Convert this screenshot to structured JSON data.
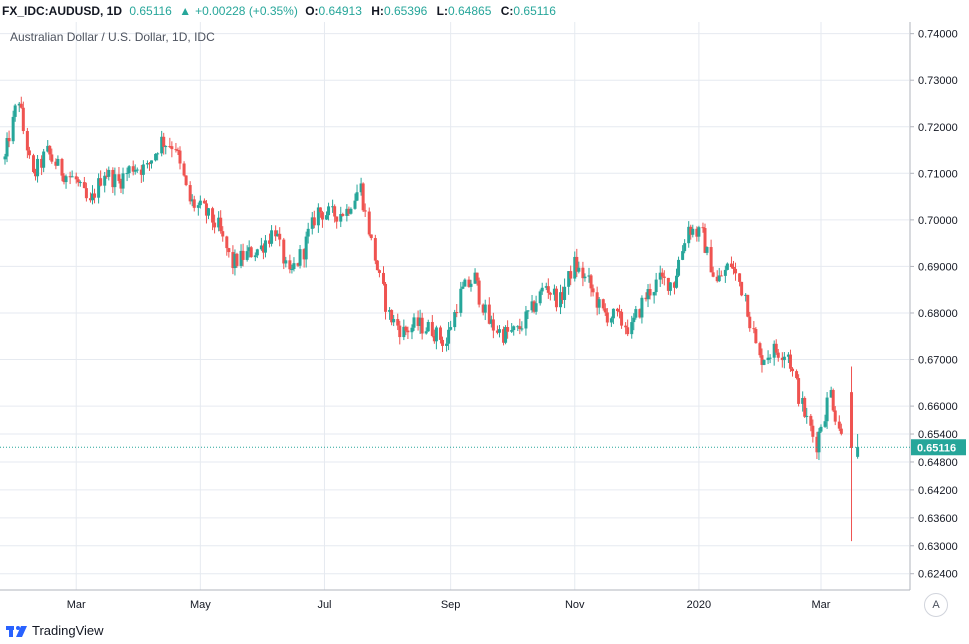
{
  "header": {
    "symbol": "FX_IDC:AUDUSD, 1D",
    "last": "0.65116",
    "change": "+0.00228 (+0.35%)",
    "o_label": "O:",
    "o_value": "0.64913",
    "h_label": "H:",
    "h_value": "0.65396",
    "l_label": "L:",
    "l_value": "0.64865",
    "c_label": "C:",
    "c_value": "0.65116"
  },
  "chart_title": "Australian Dollar / U.S. Dollar, 1D, IDC",
  "footer": {
    "brand": "TradingView"
  },
  "auto_button": "A",
  "colors": {
    "up": "#26a69a",
    "down": "#ef5350",
    "grid": "#e6eaf0",
    "last_line": "#26a69a"
  },
  "chart_data": {
    "type": "candlestick",
    "title": "Australian Dollar / U.S. Dollar, 1D, IDC",
    "ylim": [
      0.6205,
      0.7425
    ],
    "y_ticks": [
      "0.74000",
      "0.73000",
      "0.72000",
      "0.71000",
      "0.70000",
      "0.69000",
      "0.68000",
      "0.67000",
      "0.66000",
      "0.65400",
      "0.64800",
      "0.64200",
      "0.63600",
      "0.63000",
      "0.62400"
    ],
    "x_ticks": [
      "Mar",
      "May",
      "Jul",
      "Sep",
      "Nov",
      "2020",
      "Mar"
    ],
    "x_tick_dates": [
      "2019-03-01",
      "2019-05-01",
      "2019-07-01",
      "2019-09-01",
      "2019-11-01",
      "2020-01-01",
      "2020-03-01"
    ],
    "x_range": [
      "2019-01-25",
      "2020-03-30"
    ],
    "last_price": "0.65116",
    "series": [
      {
        "name": "AUDUSD",
        "points": [
          [
            "2019-01-25",
            0.713
          ],
          [
            "2019-02-01",
            0.726
          ],
          [
            "2019-02-08",
            0.709
          ],
          [
            "2019-02-15",
            0.7145
          ],
          [
            "2019-02-22",
            0.7105
          ],
          [
            "2019-03-01",
            0.7085
          ],
          [
            "2019-03-08",
            0.703
          ],
          [
            "2019-03-15",
            0.7105
          ],
          [
            "2019-03-22",
            0.708
          ],
          [
            "2019-03-29",
            0.7115
          ],
          [
            "2019-04-05",
            0.711
          ],
          [
            "2019-04-12",
            0.717
          ],
          [
            "2019-04-19",
            0.716
          ],
          [
            "2019-04-26",
            0.704
          ],
          [
            "2019-05-03",
            0.702
          ],
          [
            "2019-05-10",
            0.6985
          ],
          [
            "2019-05-17",
            0.6905
          ],
          [
            "2019-05-24",
            0.6925
          ],
          [
            "2019-05-31",
            0.694
          ],
          [
            "2019-06-07",
            0.698
          ],
          [
            "2019-06-14",
            0.6875
          ],
          [
            "2019-06-21",
            0.6935
          ],
          [
            "2019-06-28",
            0.702
          ],
          [
            "2019-07-05",
            0.701
          ],
          [
            "2019-07-12",
            0.702
          ],
          [
            "2019-07-19",
            0.707
          ],
          [
            "2019-07-26",
            0.692
          ],
          [
            "2019-08-02",
            0.6795
          ],
          [
            "2019-08-09",
            0.676
          ],
          [
            "2019-08-16",
            0.6775
          ],
          [
            "2019-08-23",
            0.6765
          ],
          [
            "2019-08-30",
            0.6735
          ],
          [
            "2019-09-06",
            0.684
          ],
          [
            "2019-09-13",
            0.6875
          ],
          [
            "2019-09-20",
            0.678
          ],
          [
            "2019-09-27",
            0.6755
          ],
          [
            "2019-10-04",
            0.676
          ],
          [
            "2019-10-11",
            0.6805
          ],
          [
            "2019-10-18",
            0.686
          ],
          [
            "2019-10-25",
            0.6825
          ],
          [
            "2019-11-01",
            0.6905
          ],
          [
            "2019-11-08",
            0.6865
          ],
          [
            "2019-11-15",
            0.68
          ],
          [
            "2019-11-22",
            0.679
          ],
          [
            "2019-11-29",
            0.6765
          ],
          [
            "2019-12-06",
            0.6835
          ],
          [
            "2019-12-13",
            0.687
          ],
          [
            "2019-12-20",
            0.6865
          ],
          [
            "2019-12-27",
            0.6985
          ],
          [
            "2020-01-03",
            0.6965
          ],
          [
            "2020-01-10",
            0.6865
          ],
          [
            "2020-01-17",
            0.6905
          ],
          [
            "2020-01-24",
            0.684
          ],
          [
            "2020-01-31",
            0.67
          ],
          [
            "2020-02-07",
            0.672
          ],
          [
            "2020-02-14",
            0.6715
          ],
          [
            "2020-02-21",
            0.66
          ],
          [
            "2020-02-28",
            0.652
          ],
          [
            "2020-03-06",
            0.663
          ],
          [
            "2020-03-13",
            0.651
          ]
        ]
      }
    ]
  }
}
